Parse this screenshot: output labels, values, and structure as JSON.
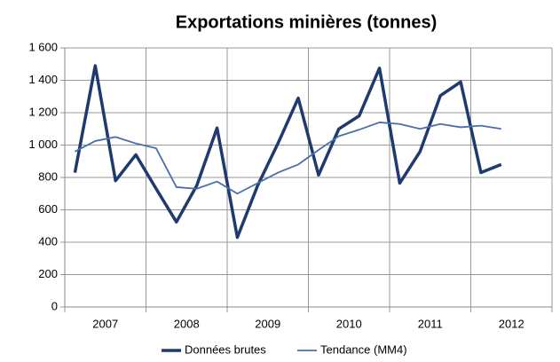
{
  "chart_data": {
    "type": "line",
    "title": "Exportations minières (tonnes)",
    "categories": [
      "2007",
      null,
      null,
      null,
      "2008",
      null,
      null,
      null,
      "2009",
      null,
      null,
      null,
      "2010",
      null,
      null,
      null,
      "2011",
      null,
      null,
      null,
      "2012",
      null,
      null,
      null
    ],
    "series": [
      {
        "name": "Données brutes",
        "color": "#1f3a6e",
        "width": 3.5,
        "values": [
          830,
          1490,
          780,
          940,
          730,
          525,
          750,
          1105,
          430,
          750,
          1010,
          1290,
          815,
          1100,
          1180,
          1475,
          765,
          960,
          1305,
          1390,
          830,
          880,
          null,
          null
        ]
      },
      {
        "name": "Tendance (MM4)",
        "color": "#4a6fa8",
        "width": 1.8,
        "values": [
          960,
          1025,
          1050,
          1010,
          980,
          740,
          730,
          775,
          700,
          765,
          830,
          880,
          970,
          1055,
          1095,
          1140,
          1130,
          1100,
          1130,
          1110,
          1120,
          1100,
          null,
          null
        ]
      }
    ],
    "ylim": [
      0,
      1600
    ],
    "yticks": [
      0,
      200,
      400,
      600,
      800,
      {
        "value": 1000,
        "label": "1 000"
      },
      {
        "value": 1200,
        "label": "1 200"
      },
      {
        "value": 1400,
        "label": "1 400"
      },
      {
        "value": 1600,
        "label": "1 600"
      }
    ],
    "grid": true,
    "legend": "bottom"
  }
}
